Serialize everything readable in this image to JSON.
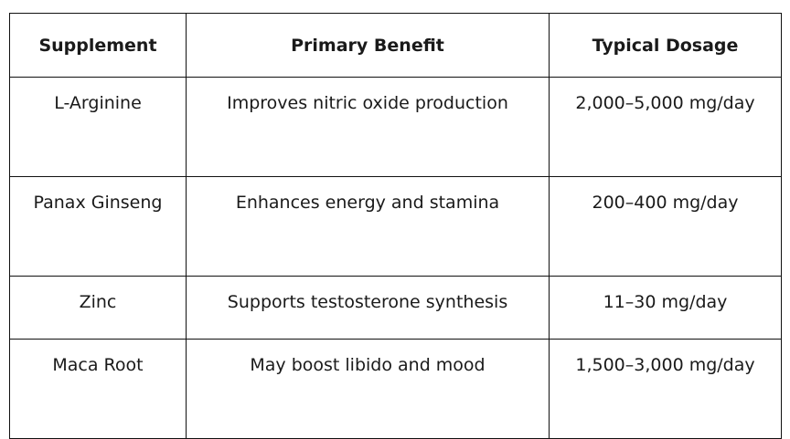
{
  "table": {
    "headers": [
      "Supplement",
      "Primary Benefit",
      "Typical Dosage"
    ],
    "rows": [
      {
        "supplement": "L-Arginine",
        "benefit": "Improves nitric oxide production",
        "dosage": "2,000–5,000 mg/day"
      },
      {
        "supplement": "Panax Ginseng",
        "benefit": "Enhances energy and stamina",
        "dosage": "200–400 mg/day"
      },
      {
        "supplement": "Zinc",
        "benefit": "Supports testosterone synthesis",
        "dosage": "11–30 mg/day"
      },
      {
        "supplement": "Maca Root",
        "benefit": "May boost libido and mood",
        "dosage": "1,500–3,000 mg/day"
      }
    ]
  }
}
